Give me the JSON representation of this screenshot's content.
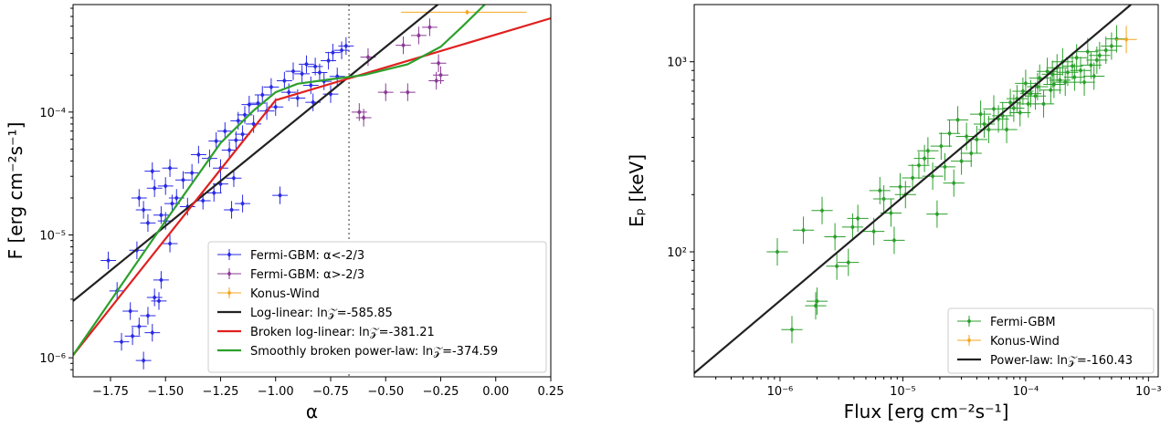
{
  "chart_data": [
    {
      "type": "scatter",
      "xlabel": "α",
      "ylabel": "F [erg cm⁻²s⁻¹]",
      "xlim": [
        -1.92,
        0.25
      ],
      "ylim": [
        7e-07,
        0.00075
      ],
      "xscale": "linear",
      "yscale": "log",
      "xticks": [
        -1.75,
        -1.5,
        -1.25,
        -1.0,
        -0.75,
        -0.5,
        -0.25,
        0.0,
        0.25
      ],
      "xtick_labels": [
        "−1.75",
        "−1.50",
        "−1.25",
        "−1.00",
        "−0.75",
        "−0.50",
        "−0.25",
        "0.00",
        "0.25"
      ],
      "yticks": [
        1e-06,
        1e-05,
        0.0001
      ],
      "ytick_labels": [
        "10⁻⁶",
        "10⁻⁵",
        "10⁻⁴"
      ],
      "vline": -0.6667,
      "legend_position": "lower-right",
      "series": [
        {
          "name": "Fermi-GBM: α<-2/3",
          "color": "#2a2ae6",
          "kind": "errorbar",
          "points": [
            [
              -1.76,
              6.2e-06
            ],
            [
              -1.72,
              3.5e-06
            ],
            [
              -1.66,
              2.4e-06
            ],
            [
              -1.7,
              1.35e-06
            ],
            [
              -1.65,
              1.5e-06
            ],
            [
              -1.62,
              1.8e-06
            ],
            [
              -1.6,
              9.5e-07
            ],
            [
              -1.58,
              2.2e-06
            ],
            [
              -1.56,
              1.6e-06
            ],
            [
              -1.55,
              3.1e-06
            ],
            [
              -1.53,
              2.9e-06
            ],
            [
              -1.52,
              4.3e-06
            ],
            [
              -1.5,
              1.3e-05
            ],
            [
              -1.48,
              8.5e-06
            ],
            [
              -1.62,
              2e-05
            ],
            [
              -1.58,
              1.25e-05
            ],
            [
              -1.63,
              7.5e-06
            ],
            [
              -1.6,
              1.6e-05
            ],
            [
              -1.56,
              3.3e-05
            ],
            [
              -1.55,
              2.4e-05
            ],
            [
              -1.52,
              1.45e-05
            ],
            [
              -1.5,
              2.5e-05
            ],
            [
              -1.48,
              3.5e-05
            ],
            [
              -1.47,
              1.8e-05
            ],
            [
              -1.45,
              2e-05
            ],
            [
              -1.42,
              2.8e-05
            ],
            [
              -1.4,
              1.7e-05
            ],
            [
              -1.38,
              3.2e-05
            ],
            [
              -1.35,
              4.5e-05
            ],
            [
              -1.33,
              1.9e-05
            ],
            [
              -1.3,
              4.2e-05
            ],
            [
              -1.28,
              2.2e-05
            ],
            [
              -1.27,
              5.8e-05
            ],
            [
              -1.25,
              3.5e-05
            ],
            [
              -1.23,
              7e-05
            ],
            [
              -1.21,
              4.9e-05
            ],
            [
              -1.19,
              2.9e-05
            ],
            [
              -1.18,
              5.9e-05
            ],
            [
              -1.17,
              8.5e-05
            ],
            [
              -1.15,
              6.6e-05
            ],
            [
              -1.14,
              9.5e-05
            ],
            [
              -1.12,
              0.000115
            ],
            [
              -1.1,
              8e-05
            ],
            [
              -1.08,
              0.000118
            ],
            [
              -1.06,
              0.000138
            ],
            [
              -1.04,
              0.000102
            ],
            [
              -1.02,
              0.00016
            ],
            [
              -1.0,
              0.00011
            ],
            [
              -0.98,
              2.1e-05
            ],
            [
              -0.96,
              0.00018
            ],
            [
              -0.94,
              0.000145
            ],
            [
              -0.92,
              0.000215
            ],
            [
              -0.9,
              0.00013
            ],
            [
              -0.88,
              0.000205
            ],
            [
              -0.86,
              0.000245
            ],
            [
              -0.84,
              0.000165
            ],
            [
              -0.82,
              0.000235
            ],
            [
              -0.8,
              0.00021
            ],
            [
              -0.78,
              0.000178
            ],
            [
              -0.76,
              0.000262
            ],
            [
              -0.74,
              0.000305
            ],
            [
              -0.72,
              0.000195
            ],
            [
              -0.7,
              0.000318
            ],
            [
              -0.68,
              0.000345
            ],
            [
              -0.75,
              0.00014
            ],
            [
              -0.83,
              0.00012
            ],
            [
              -1.25,
              2.6e-05
            ],
            [
              -1.15,
              1.8e-05
            ],
            [
              -1.2,
              1.6e-05
            ]
          ]
        },
        {
          "name": "Fermi-GBM: α>-2/3",
          "color": "#8b3a96",
          "kind": "errorbar",
          "points": [
            [
              -0.62,
              0.0001
            ],
            [
              -0.6,
              9e-05
            ],
            [
              -0.58,
              0.00028
            ],
            [
              -0.5,
              0.000145
            ],
            [
              -0.42,
              0.00035
            ],
            [
              -0.4,
              0.000145
            ],
            [
              -0.35,
              0.00042
            ],
            [
              -0.3,
              0.00049
            ],
            [
              -0.27,
              0.00018
            ],
            [
              -0.26,
              0.00025
            ],
            [
              -0.25,
              0.0002
            ]
          ]
        },
        {
          "name": "Konus-Wind",
          "color": "#f5a623",
          "kind": "errorbar",
          "points": [
            [
              -0.13,
              0.00065
            ]
          ],
          "xerr": [
            [
              0.3,
              0.27
            ]
          ]
        },
        {
          "name": "Log-linear: ln𝒵=-585.85",
          "color": "#222222",
          "kind": "line",
          "x": [
            -1.92,
            0.25
          ],
          "y": [
            2.9e-06,
            0.0042
          ]
        },
        {
          "name": "Broken log-linear: ln𝒵=-381.21",
          "color": "#e02020",
          "kind": "line",
          "x": [
            -1.92,
            -1.0,
            0.25
          ],
          "y": [
            1.05e-06,
            0.000125,
            0.00058
          ]
        },
        {
          "name": "Smoothly broken power-law: ln𝒵=-374.59",
          "color": "#2ca02c",
          "kind": "line",
          "x": [
            -1.92,
            -1.5,
            -1.25,
            -1.1,
            -1.0,
            -0.9,
            -0.75,
            -0.6,
            -0.4,
            -0.25,
            -0.15,
            -0.05
          ],
          "y": [
            1.05e-06,
            1.3e-05,
            5.6e-05,
            0.000103,
            0.000145,
            0.00017,
            0.000185,
            0.0002,
            0.000245,
            0.00034,
            0.0005,
            0.00075
          ]
        }
      ]
    },
    {
      "type": "scatter",
      "xlabel": "Flux [erg cm⁻²s⁻¹]",
      "ylabel": "Eₚ [keV]",
      "xlim": [
        2e-07,
        0.0012
      ],
      "ylim": [
        22,
        2000
      ],
      "xscale": "log",
      "yscale": "log",
      "xticks": [
        1e-06,
        1e-05,
        0.0001,
        0.001
      ],
      "xtick_labels": [
        "10⁻⁶",
        "10⁻⁵",
        "10⁻⁴",
        "10⁻³"
      ],
      "yticks": [
        100,
        1000
      ],
      "ytick_labels": [
        "10²",
        "10³"
      ],
      "legend_position": "lower-right",
      "series": [
        {
          "name": "Fermi-GBM",
          "color": "#2ca02c",
          "kind": "errorbar",
          "points": [
            [
              9.5e-07,
              100
            ],
            [
              1.25e-06,
              39
            ],
            [
              1.55e-06,
              130
            ],
            [
              1.95e-06,
              52
            ],
            [
              2e-06,
              55
            ],
            [
              2.2e-06,
              165
            ],
            [
              2.8e-06,
              120
            ],
            [
              2.9e-06,
              84
            ],
            [
              3.6e-06,
              88
            ],
            [
              3.9e-06,
              135
            ],
            [
              4.3e-06,
              150
            ],
            [
              5.8e-06,
              128
            ],
            [
              6.5e-06,
              210
            ],
            [
              7e-06,
              190
            ],
            [
              8e-06,
              160
            ],
            [
              8.5e-06,
              115
            ],
            [
              9.5e-06,
              220
            ],
            [
              1.05e-05,
              200
            ],
            [
              1.2e-05,
              245
            ],
            [
              1.35e-05,
              285
            ],
            [
              1.5e-05,
              310
            ],
            [
              1.6e-05,
              340
            ],
            [
              1.75e-05,
              250
            ],
            [
              1.9e-05,
              158
            ],
            [
              2.05e-05,
              360
            ],
            [
              2.2e-05,
              280
            ],
            [
              2.4e-05,
              420
            ],
            [
              2.6e-05,
              230
            ],
            [
              2.8e-05,
              495
            ],
            [
              3e-05,
              300
            ],
            [
              3.3e-05,
              405
            ],
            [
              3.6e-05,
              330
            ],
            [
              4e-05,
              390
            ],
            [
              4.3e-05,
              530
            ],
            [
              4.6e-05,
              470
            ],
            [
              5e-05,
              440
            ],
            [
              5.5e-05,
              565
            ],
            [
              6e-05,
              500
            ],
            [
              6.5e-05,
              520
            ],
            [
              7e-05,
              440
            ],
            [
              7.5e-05,
              610
            ],
            [
              8e-05,
              570
            ],
            [
              8.5e-05,
              640
            ],
            [
              9e-05,
              540
            ],
            [
              9.5e-05,
              700
            ],
            [
              0.0001,
              770
            ],
            [
              0.000105,
              600
            ],
            [
              0.00011,
              680
            ],
            [
              0.00012,
              660
            ],
            [
              0.000125,
              740
            ],
            [
              0.00013,
              820
            ],
            [
              0.00014,
              600
            ],
            [
              0.00015,
              890
            ],
            [
              0.00016,
              710
            ],
            [
              0.000165,
              860
            ],
            [
              0.00017,
              760
            ],
            [
              0.00018,
              930
            ],
            [
              0.00019,
              800
            ],
            [
              0.0002,
              1000
            ],
            [
              0.00021,
              780
            ],
            [
              0.00022,
              880
            ],
            [
              0.00024,
              950
            ],
            [
              0.00025,
              830
            ],
            [
              0.00026,
              1050
            ],
            [
              0.00028,
              900
            ],
            [
              0.0003,
              780
            ],
            [
              0.00032,
              1130
            ],
            [
              0.00034,
              960
            ],
            [
              0.00036,
              840
            ],
            [
              0.00038,
              1020
            ],
            [
              0.0004,
              1080
            ],
            [
              0.00045,
              1150
            ],
            [
              0.0005,
              1210
            ],
            [
              0.00055,
              1320
            ]
          ]
        },
        {
          "name": "Konus-Wind",
          "color": "#f5a623",
          "kind": "errorbar",
          "points": [
            [
              0.00066,
              1310
            ]
          ]
        },
        {
          "name": "Power-law: ln𝒵=-160.43",
          "color": "#222222",
          "kind": "line",
          "x": [
            2e-07,
            0.00072
          ],
          "y": [
            23,
            2000
          ]
        }
      ]
    }
  ]
}
